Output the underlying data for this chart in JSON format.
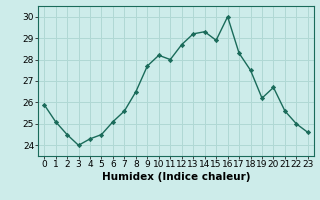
{
  "x": [
    0,
    1,
    2,
    3,
    4,
    5,
    6,
    7,
    8,
    9,
    10,
    11,
    12,
    13,
    14,
    15,
    16,
    17,
    18,
    19,
    20,
    21,
    22,
    23
  ],
  "y": [
    25.9,
    25.1,
    24.5,
    24.0,
    24.3,
    24.5,
    25.1,
    25.6,
    26.5,
    27.7,
    28.2,
    28.0,
    28.7,
    29.2,
    29.3,
    28.9,
    30.0,
    28.3,
    27.5,
    26.2,
    26.7,
    25.6,
    25.0,
    24.6
  ],
  "line_color": "#1a6b5a",
  "marker": "D",
  "marker_size": 2.2,
  "linewidth": 1.0,
  "bg_color": "#cdecea",
  "grid_color": "#b0d8d4",
  "xlabel": "Humidex (Indice chaleur)",
  "xlabel_fontsize": 7.5,
  "xlim": [
    -0.5,
    23.5
  ],
  "ylim": [
    23.5,
    30.5
  ],
  "yticks": [
    24,
    25,
    26,
    27,
    28,
    29,
    30
  ],
  "xtick_labels": [
    "0",
    "1",
    "2",
    "3",
    "4",
    "5",
    "6",
    "7",
    "8",
    "9",
    "10",
    "11",
    "12",
    "13",
    "14",
    "15",
    "16",
    "17",
    "18",
    "19",
    "20",
    "21",
    "22",
    "23"
  ],
  "tick_fontsize": 6.5
}
